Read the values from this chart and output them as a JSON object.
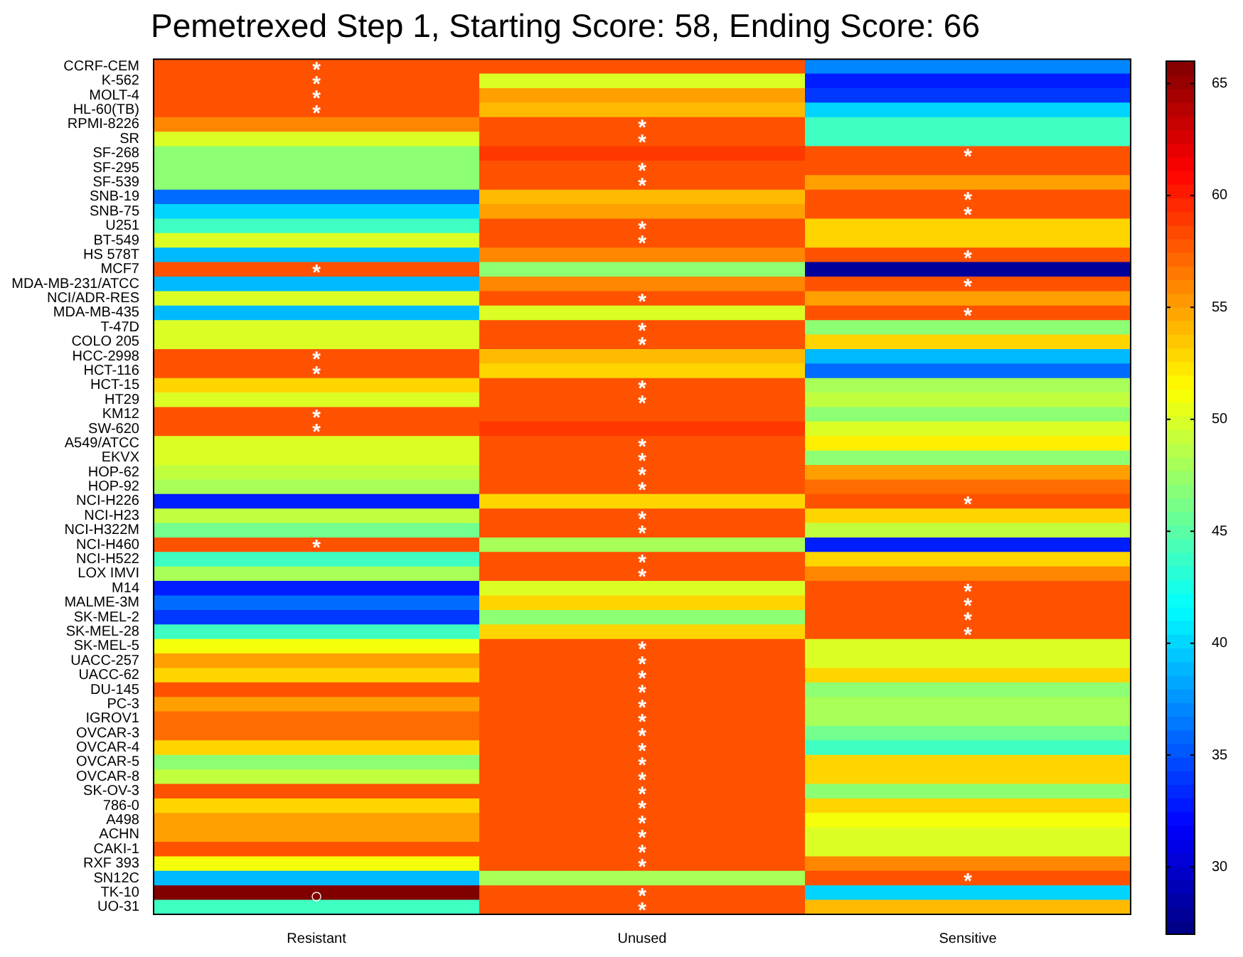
{
  "chart_data": {
    "type": "heatmap",
    "title": "Pemetrexed Step 1, Starting Score: 58, Ending Score: 66",
    "categories": [
      "Resistant",
      "Unused",
      "Sensitive"
    ],
    "y_categories": [
      "CCRF-CEM",
      "K-562",
      "MOLT-4",
      "HL-60(TB)",
      "RPMI-8226",
      "SR",
      "SF-268",
      "SF-295",
      "SF-539",
      "SNB-19",
      "SNB-75",
      "U251",
      "BT-549",
      "HS 578T",
      "MCF7",
      "MDA-MB-231/ATCC",
      "NCI/ADR-RES",
      "MDA-MB-435",
      "T-47D",
      "COLO 205",
      "HCC-2998",
      "HCT-116",
      "HCT-15",
      "HT29",
      "KM12",
      "SW-620",
      "A549/ATCC",
      "EKVX",
      "HOP-62",
      "HOP-92",
      "NCI-H226",
      "NCI-H23",
      "NCI-H322M",
      "NCI-H460",
      "NCI-H522",
      "LOX IMVI",
      "M14",
      "MALME-3M",
      "SK-MEL-2",
      "SK-MEL-28",
      "SK-MEL-5",
      "UACC-257",
      "UACC-62",
      "DU-145",
      "PC-3",
      "IGROV1",
      "OVCAR-3",
      "OVCAR-4",
      "OVCAR-5",
      "OVCAR-8",
      "SK-OV-3",
      "786-0",
      "A498",
      "ACHN",
      "CAKI-1",
      "RXF 393",
      "SN12C",
      "TK-10",
      "UO-31"
    ],
    "cells": [
      [
        58,
        58,
        37
      ],
      [
        58,
        50,
        33
      ],
      [
        58,
        55,
        34
      ],
      [
        58,
        54,
        40
      ],
      [
        56,
        58,
        44
      ],
      [
        50,
        58,
        44
      ],
      [
        47,
        59,
        58
      ],
      [
        47,
        58,
        58
      ],
      [
        47,
        58,
        55
      ],
      [
        36,
        54,
        58
      ],
      [
        40,
        55,
        58
      ],
      [
        44,
        58,
        53
      ],
      [
        50,
        58,
        53
      ],
      [
        39,
        56,
        58
      ],
      [
        58,
        47,
        28
      ],
      [
        39,
        56,
        58
      ],
      [
        50,
        58,
        55
      ],
      [
        39,
        50,
        58
      ],
      [
        50,
        58,
        47
      ],
      [
        50,
        58,
        53
      ],
      [
        58,
        54,
        39
      ],
      [
        58,
        53,
        36
      ],
      [
        53,
        58,
        48
      ],
      [
        50,
        58,
        49
      ],
      [
        58,
        58,
        47
      ],
      [
        58,
        59,
        50
      ],
      [
        50,
        58,
        52
      ],
      [
        50,
        58,
        47
      ],
      [
        49,
        58,
        55
      ],
      [
        48,
        58,
        57
      ],
      [
        33,
        53,
        58
      ],
      [
        49,
        58,
        53
      ],
      [
        46,
        58,
        49
      ],
      [
        58,
        48,
        33
      ],
      [
        44,
        58,
        53
      ],
      [
        48,
        58,
        56
      ],
      [
        33,
        50,
        58
      ],
      [
        36,
        53,
        58
      ],
      [
        34,
        47,
        58
      ],
      [
        44,
        53,
        58
      ],
      [
        51,
        58,
        50
      ],
      [
        55,
        58,
        50
      ],
      [
        53,
        58,
        53
      ],
      [
        58,
        58,
        47
      ],
      [
        55,
        58,
        48
      ],
      [
        57,
        58,
        48
      ],
      [
        57,
        58,
        46
      ],
      [
        53,
        58,
        44
      ],
      [
        47,
        58,
        53
      ],
      [
        49,
        58,
        53
      ],
      [
        58,
        58,
        47
      ],
      [
        53,
        58,
        53
      ],
      [
        55,
        58,
        51
      ],
      [
        55,
        58,
        50
      ],
      [
        58,
        58,
        50
      ],
      [
        51,
        58,
        56
      ],
      [
        39,
        48,
        58
      ],
      [
        66,
        58,
        40
      ],
      [
        44,
        58,
        54
      ]
    ],
    "cell_labels": [
      [
        "*",
        null,
        null
      ],
      [
        "*",
        null,
        null
      ],
      [
        "*",
        null,
        null
      ],
      [
        "*",
        null,
        null
      ],
      [
        null,
        "*",
        null
      ],
      [
        null,
        "*",
        null
      ],
      [
        null,
        null,
        "*"
      ],
      [
        null,
        "*",
        null
      ],
      [
        null,
        "*",
        null
      ],
      [
        null,
        null,
        "*"
      ],
      [
        null,
        null,
        "*"
      ],
      [
        null,
        "*",
        null
      ],
      [
        null,
        "*",
        null
      ],
      [
        null,
        null,
        "*"
      ],
      [
        "*",
        null,
        null
      ],
      [
        null,
        null,
        "*"
      ],
      [
        null,
        "*",
        null
      ],
      [
        null,
        null,
        "*"
      ],
      [
        null,
        "*",
        null
      ],
      [
        null,
        "*",
        null
      ],
      [
        "*",
        null,
        null
      ],
      [
        "*",
        null,
        null
      ],
      [
        null,
        "*",
        null
      ],
      [
        null,
        "*",
        null
      ],
      [
        "*",
        null,
        null
      ],
      [
        "*",
        null,
        null
      ],
      [
        null,
        "*",
        null
      ],
      [
        null,
        "*",
        null
      ],
      [
        null,
        "*",
        null
      ],
      [
        null,
        "*",
        null
      ],
      [
        null,
        null,
        "*"
      ],
      [
        null,
        "*",
        null
      ],
      [
        null,
        "*",
        null
      ],
      [
        "*",
        null,
        null
      ],
      [
        null,
        "*",
        null
      ],
      [
        null,
        "*",
        null
      ],
      [
        null,
        null,
        "*"
      ],
      [
        null,
        null,
        "*"
      ],
      [
        null,
        null,
        "*"
      ],
      [
        null,
        null,
        "*"
      ],
      [
        null,
        "*",
        null
      ],
      [
        null,
        "*",
        null
      ],
      [
        null,
        "*",
        null
      ],
      [
        null,
        "*",
        null
      ],
      [
        null,
        "*",
        null
      ],
      [
        null,
        "*",
        null
      ],
      [
        null,
        "*",
        null
      ],
      [
        null,
        "*",
        null
      ],
      [
        null,
        "*",
        null
      ],
      [
        null,
        "*",
        null
      ],
      [
        null,
        "*",
        null
      ],
      [
        null,
        "*",
        null
      ],
      [
        null,
        "*",
        null
      ],
      [
        null,
        "*",
        null
      ],
      [
        null,
        "*",
        null
      ],
      [
        null,
        "*",
        null
      ],
      [
        null,
        null,
        "*"
      ],
      [
        "○",
        "*",
        null
      ],
      [
        null,
        "*",
        null
      ]
    ],
    "clim": [
      27,
      66
    ],
    "cticks": [
      30,
      35,
      40,
      45,
      50,
      55,
      60,
      65
    ]
  }
}
